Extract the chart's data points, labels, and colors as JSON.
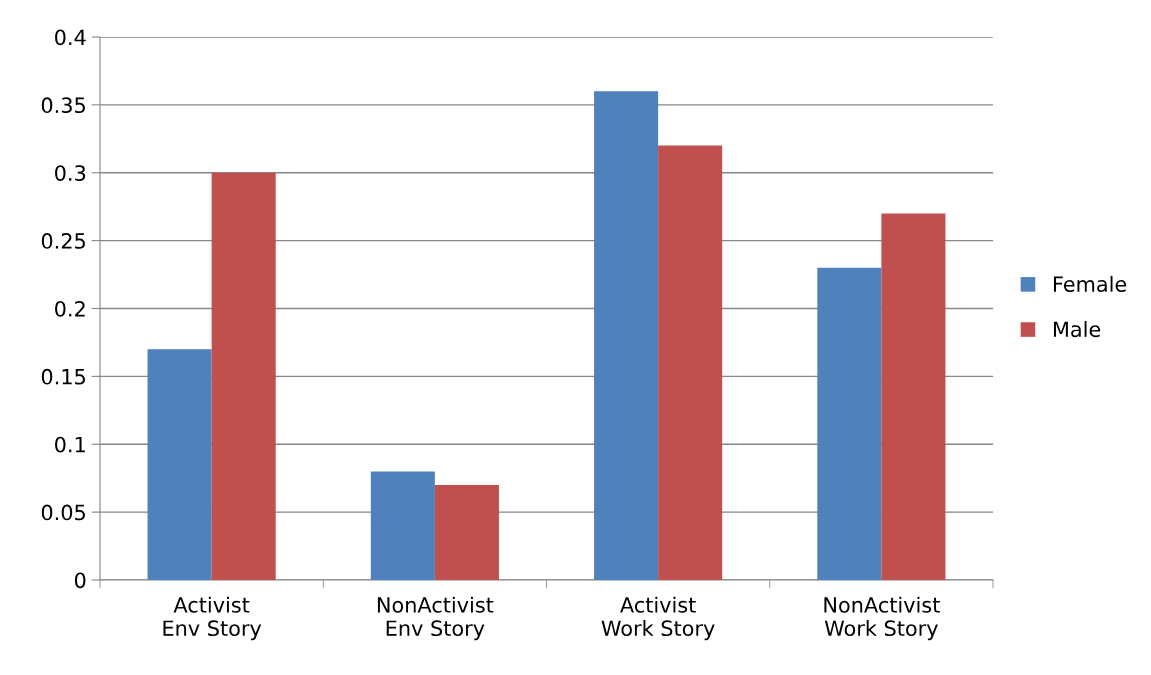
{
  "chart_data": {
    "type": "bar",
    "categories": [
      "Activist\nEnv Story",
      "NonActivist\nEnv Story",
      "Activist\nWork Story",
      "NonActivist\nWork Story"
    ],
    "series": [
      {
        "name": "Female",
        "color": "#4f81bd",
        "values": [
          0.17,
          0.08,
          0.36,
          0.23
        ]
      },
      {
        "name": "Male",
        "color": "#c0504d",
        "values": [
          0.3,
          0.07,
          0.32,
          0.27
        ]
      }
    ],
    "ylim": [
      0,
      0.4
    ],
    "yticks": [
      0,
      0.05,
      0.1,
      0.15,
      0.2,
      0.25,
      0.3,
      0.35,
      0.4
    ],
    "grid": "y",
    "legend": "right"
  }
}
